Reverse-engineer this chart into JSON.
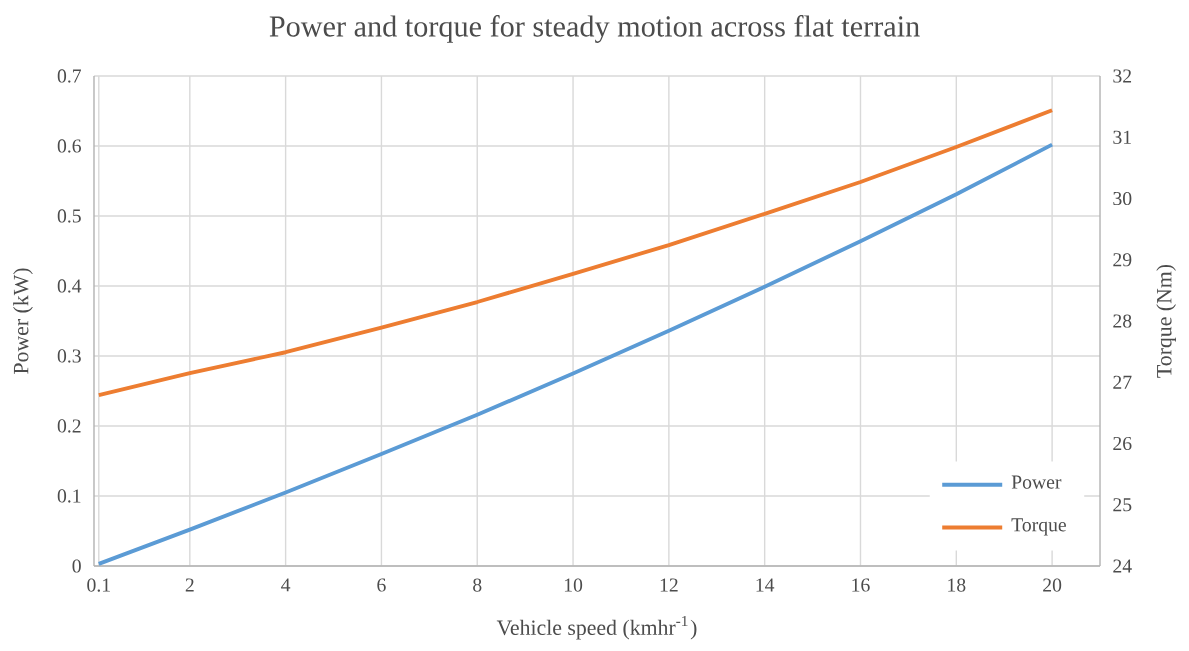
{
  "chart_data": {
    "type": "line",
    "title": "Power and torque for steady motion across flat terrain",
    "xlabel": "Vehicle speed (kmhr$^{-1}$)",
    "ylabel": "Power (kW)",
    "y2label": "Torque (Nm)",
    "x": [
      0.1,
      2,
      4,
      6,
      8,
      10,
      12,
      14,
      16,
      18,
      20
    ],
    "series": [
      {
        "name": "Power",
        "color": "#5b9bd5",
        "values": [
          0.003,
          0.052,
          0.105,
          0.16,
          0.216,
          0.275,
          0.336,
          0.399,
          0.464,
          0.531,
          0.602
        ]
      },
      {
        "name": "Torque",
        "color": "#ed7d31",
        "axis": "y2",
        "values": [
          26.79,
          27.15,
          27.49,
          27.89,
          28.31,
          28.77,
          29.24,
          29.75,
          30.27,
          30.84,
          31.44
        ]
      }
    ],
    "xlim": [
      0,
      21
    ],
    "xticks": [
      0.1,
      2,
      4,
      6,
      8,
      10,
      12,
      14,
      16,
      18,
      20
    ],
    "ylim": [
      0,
      0.7
    ],
    "yticks": [
      0,
      0.1,
      0.2,
      0.3,
      0.4,
      0.5,
      0.6,
      0.7
    ],
    "y2lim": [
      24,
      32
    ],
    "y2ticks": [
      24,
      25,
      26,
      27,
      28,
      29,
      30,
      31,
      32
    ],
    "grid": true,
    "legend": "bottom right"
  }
}
